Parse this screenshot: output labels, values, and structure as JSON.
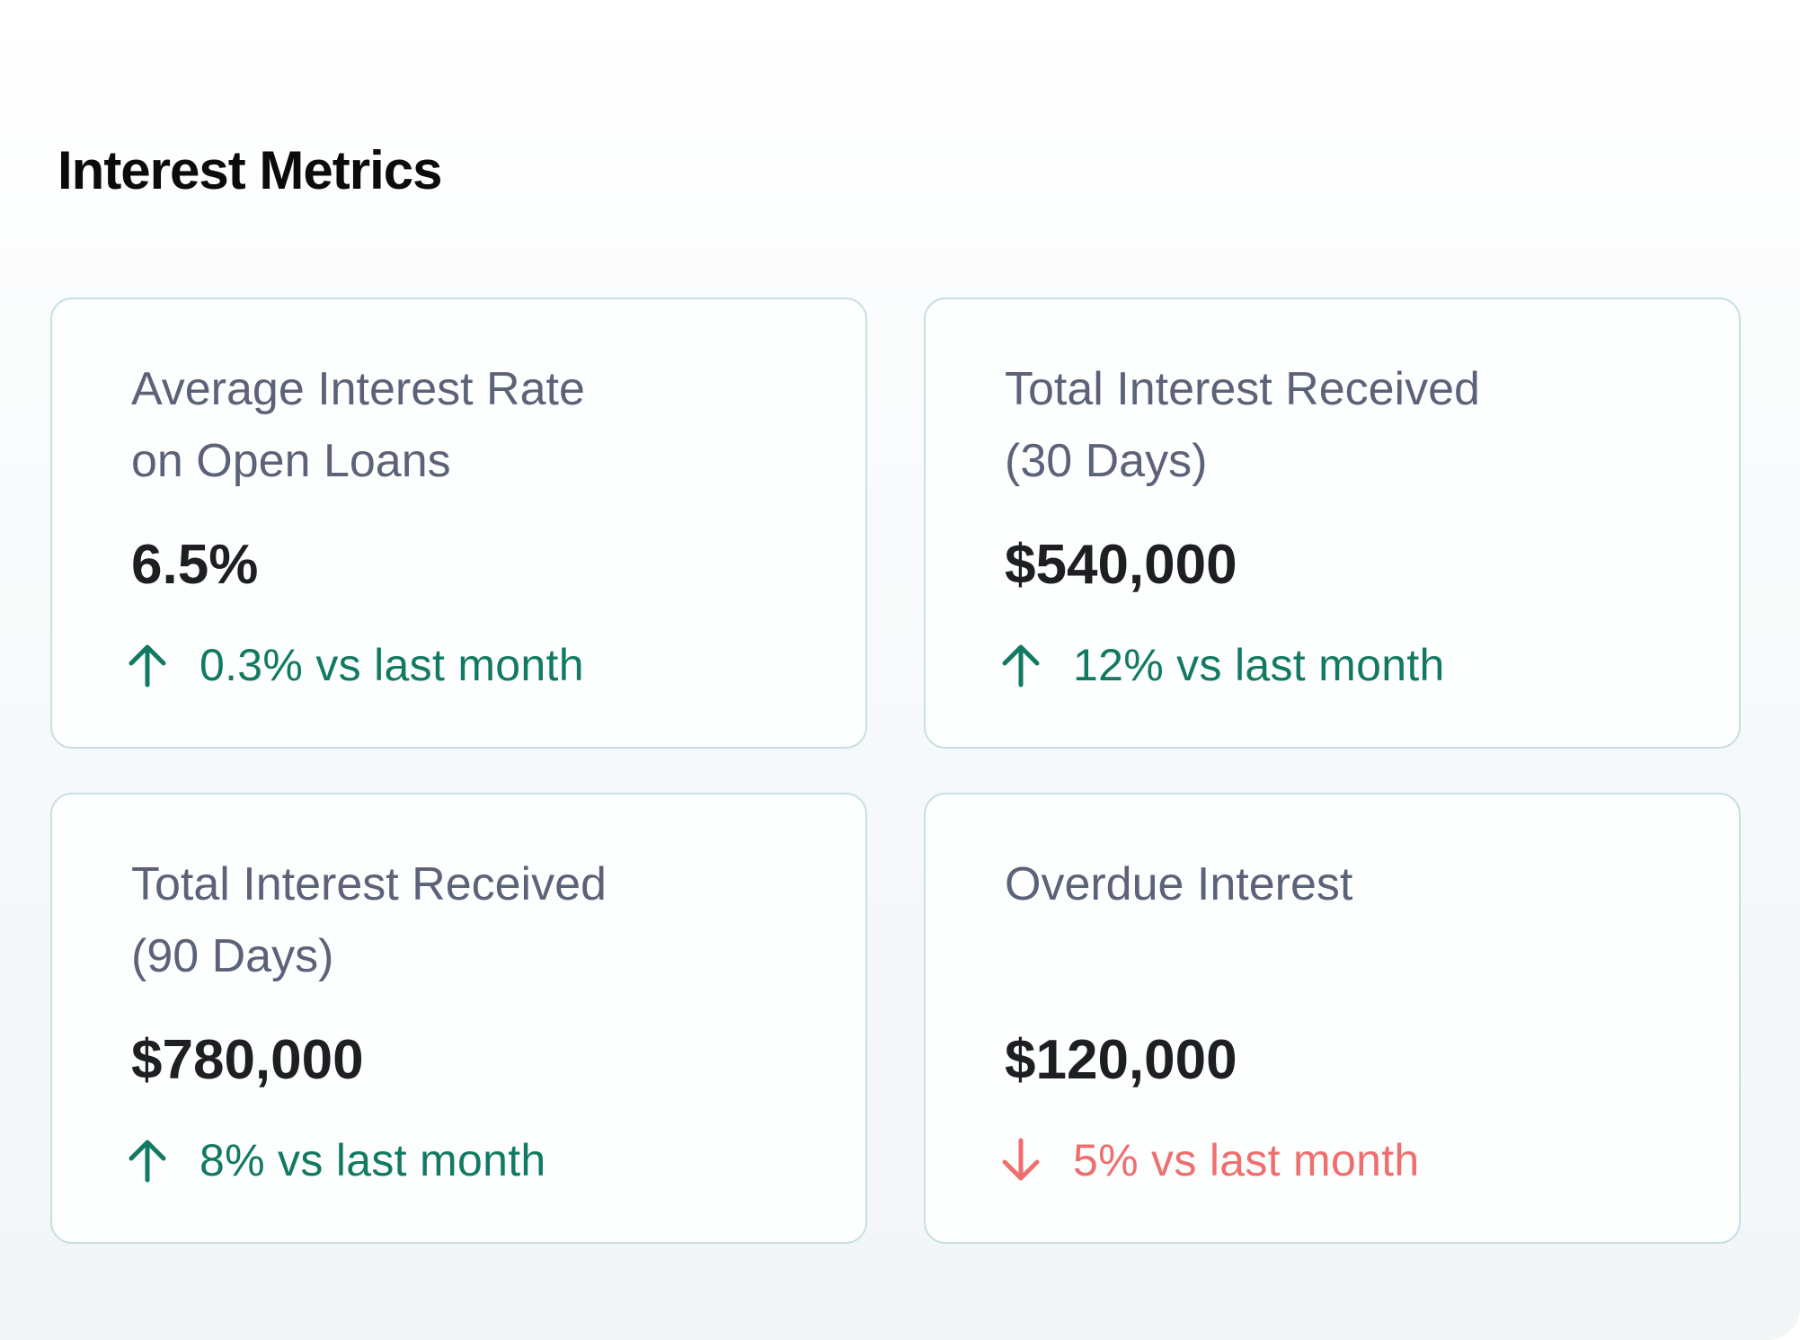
{
  "header": {
    "title": "Interest Metrics"
  },
  "colors": {
    "positive": "#127a62",
    "negative": "#ef6f6f",
    "label": "#5c6378",
    "value": "#1e1f22",
    "card_border": "#c9dfe2"
  },
  "metrics": [
    {
      "label": "Average Interest Rate\non Open Loans",
      "value": "6.5%",
      "trend_direction": "up",
      "trend_icon": "arrow-up-icon",
      "trend_text": "0.3% vs last month"
    },
    {
      "label": "Total Interest Received\n(30 Days)",
      "value": "$540,000",
      "trend_direction": "up",
      "trend_icon": "arrow-up-icon",
      "trend_text": "12% vs last month"
    },
    {
      "label": "Total Interest Received\n(90 Days)",
      "value": "$780,000",
      "trend_direction": "up",
      "trend_icon": "arrow-up-icon",
      "trend_text": "8% vs last month"
    },
    {
      "label": "Overdue Interest",
      "value": "$120,000",
      "trend_direction": "down",
      "trend_icon": "arrow-down-icon",
      "trend_text": "5% vs last month"
    }
  ]
}
